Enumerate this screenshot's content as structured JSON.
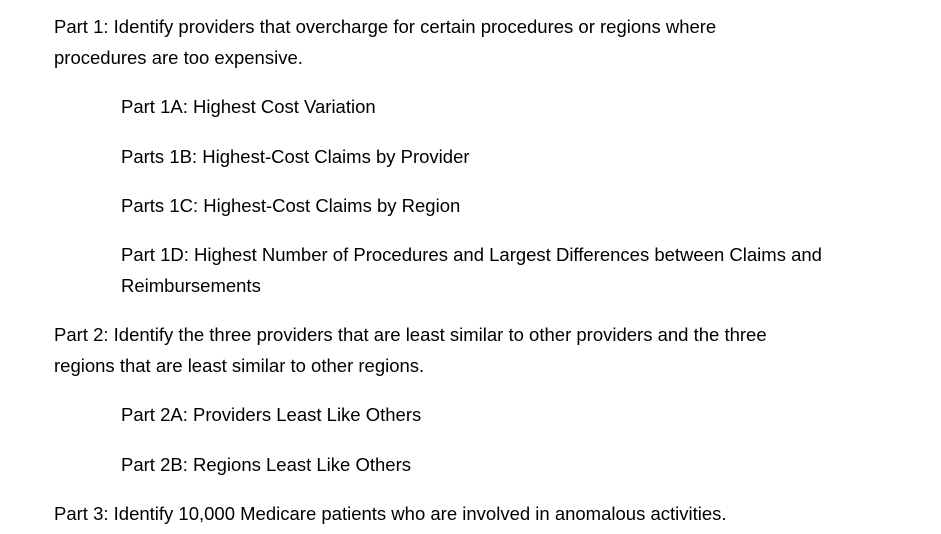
{
  "document": {
    "part1": {
      "line1": "Part 1: Identify providers that overcharge for certain procedures or regions where",
      "line2": "procedures are too expensive."
    },
    "part1a": "Part 1A: Highest Cost Variation",
    "part1b": "Parts 1B: Highest-Cost Claims by Provider",
    "part1c": "Parts 1C: Highest-Cost Claims by Region",
    "part1d": {
      "line1": "Part 1D: Highest Number of Procedures and Largest Differences between Claims and",
      "line2": "Reimbursements"
    },
    "part2": {
      "line1": "Part 2: Identify the three providers that are least similar to other providers and the three",
      "line2": "regions that are least similar to other regions."
    },
    "part2a": "Part 2A: Providers Least Like Others",
    "part2b": "Part 2B: Regions Least Like Others",
    "part3": "Part 3: Identify 10,000 Medicare patients who are involved in anomalous activities."
  }
}
